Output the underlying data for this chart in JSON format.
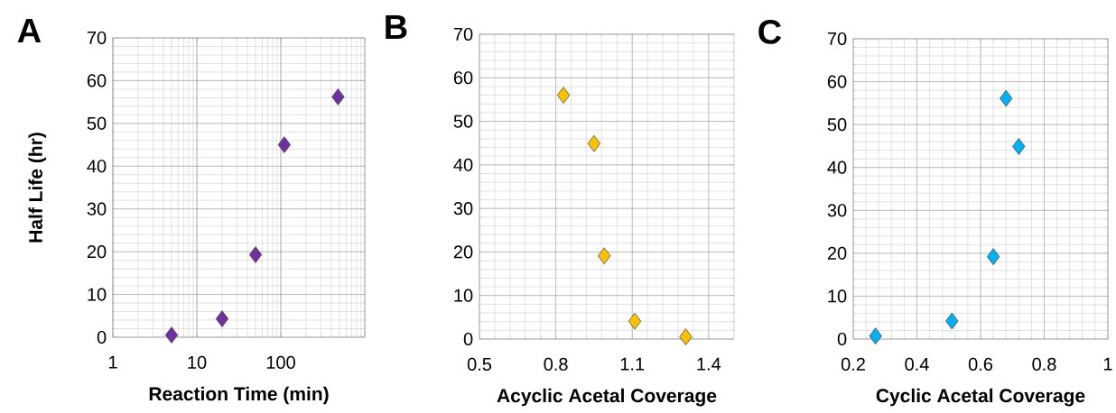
{
  "chart_data": [
    {
      "type": "scatter",
      "title": "A",
      "xlabel": "Reaction Time (min)",
      "ylabel": "Half Life (hr)",
      "log": "x",
      "x": [
        5,
        20,
        50,
        110,
        480
      ],
      "values": [
        0.5,
        4.3,
        19.3,
        45,
        56.2
      ],
      "color": "#7030a0",
      "marker": "diamond",
      "grid": true,
      "xlim": [
        1,
        1000
      ],
      "ylim": [
        0,
        70
      ],
      "xticks": [
        1,
        10,
        100,
        {
          "value": 1000,
          "label": null
        }
      ],
      "yticks": [
        0,
        10,
        20,
        30,
        40,
        50,
        60,
        70
      ]
    },
    {
      "type": "scatter",
      "title": "B",
      "xlabel": "Acyclic Acetal Coverage",
      "x": [
        0.83,
        0.95,
        0.99,
        1.11,
        1.31
      ],
      "values": [
        56,
        44.9,
        19.1,
        4.1,
        0.5
      ],
      "color": "#ffc000",
      "marker": "diamond",
      "grid": true,
      "xlim": [
        0.5,
        1.5
      ],
      "ylim": [
        0,
        70
      ],
      "xticks": [
        0.5,
        0.8,
        1.1,
        1.4
      ],
      "yticks": [
        0,
        10,
        20,
        30,
        40,
        50,
        60,
        70
      ]
    },
    {
      "type": "scatter",
      "title": "C",
      "xlabel": "Cyclic Acetal Coverage",
      "x": [
        0.27,
        0.51,
        0.64,
        0.68,
        0.72
      ],
      "values": [
        0.7,
        4.2,
        19.2,
        56.1,
        44.9
      ],
      "color": "#00b0f0",
      "marker": "diamond",
      "grid": true,
      "xlim": [
        0.2,
        1
      ],
      "ylim": [
        0,
        70
      ],
      "xticks": [
        0.2,
        0.4,
        0.6,
        0.8,
        1
      ],
      "yticks": [
        0,
        10,
        20,
        30,
        40,
        50,
        60,
        70
      ]
    }
  ]
}
